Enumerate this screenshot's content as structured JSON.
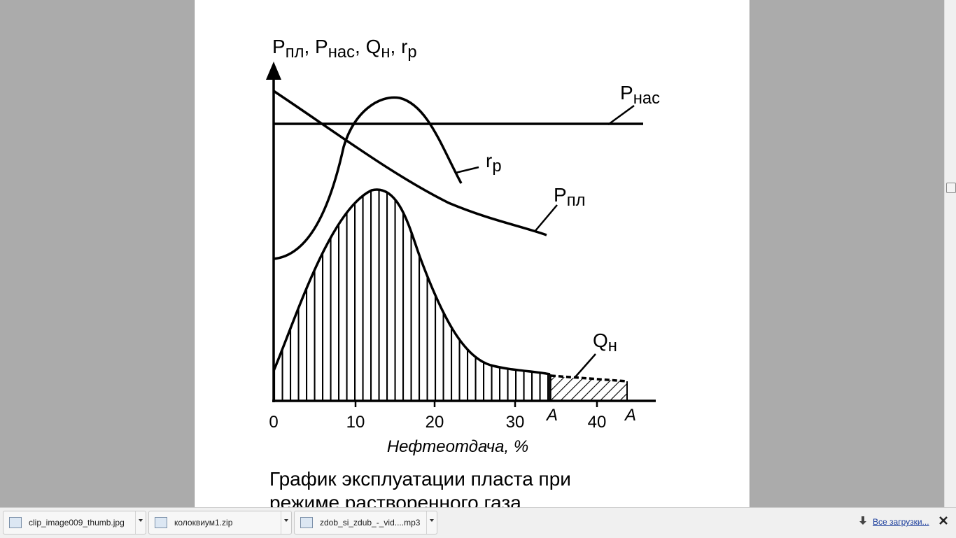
{
  "figure": {
    "y_label": {
      "parts": [
        {
          "text": "P",
          "sub": "пл"
        },
        {
          "text": "P",
          "sub": "нас"
        },
        {
          "text": "Q",
          "sub": "н"
        },
        {
          "text": "r",
          "sub": "р"
        }
      ],
      "separator": ", "
    },
    "curve_labels": [
      {
        "text": "P",
        "sub": "нас"
      },
      {
        "text": "r",
        "sub": "р"
      },
      {
        "text": "P",
        "sub": "пл"
      },
      {
        "text": "Q",
        "sub": "н"
      }
    ],
    "x_ticks": [
      "0",
      "10",
      "20",
      "30",
      "40"
    ],
    "a_marks": [
      "A",
      "A"
    ],
    "x_label": "Нефтеотдача, %"
  },
  "caption": [
    "График эксплуатации пласта при",
    "режиме растворенного газа"
  ],
  "downloads": {
    "items": [
      "clip_image009_thumb.jpg",
      "колоквиум1.zip",
      "zdob_si_zdub_-_vid....mp3"
    ],
    "all": "Все загрузки..."
  }
}
